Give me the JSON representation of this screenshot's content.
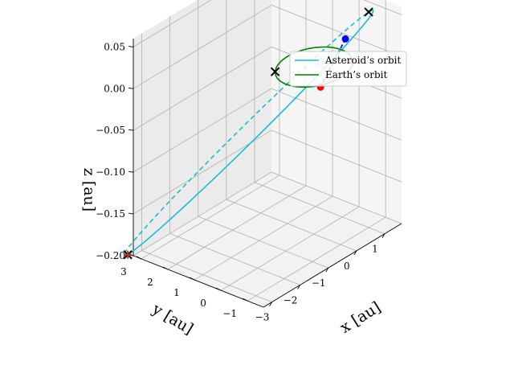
{
  "chart_data": {
    "type": "line",
    "projection": "3d",
    "title": "",
    "xlabel": "$x$ [au]",
    "ylabel": "$y$ [au]",
    "zlabel": "$z$ [au]",
    "xlabel_display": "x [au]",
    "ylabel_display": "y [au]",
    "zlabel_display": "z [au]",
    "xlim": [
      -3.3,
      1.6
    ],
    "ylim": [
      -1.6,
      3.3
    ],
    "zlim": [
      -0.2,
      0.06
    ],
    "x_ticks": [
      -3,
      -2,
      -1,
      0,
      1
    ],
    "y_ticks": [
      -1,
      0,
      1,
      2,
      3
    ],
    "z_ticks": [
      -0.2,
      -0.15,
      -0.1,
      -0.05,
      0.0,
      0.05
    ],
    "x_tick_labels": [
      "−3",
      "−2",
      "−1",
      "0",
      "1"
    ],
    "y_tick_labels": [
      "−1",
      "0",
      "1",
      "2",
      "3"
    ],
    "z_tick_labels": [
      "−0.20",
      "−0.15",
      "−0.10",
      "−0.05",
      "0.00",
      "0.05"
    ],
    "grid": true,
    "legend_position": "upper right",
    "series": [
      {
        "name": "Asteroid’s orbit",
        "color": "#17becf",
        "kind": "ellipse",
        "center": [
          -1.2,
          1.2,
          -0.07
        ],
        "perihelion": [
          1.0,
          -1.0,
          0.058
        ],
        "aphelion": [
          -3.4,
          3.4,
          -0.198
        ],
        "minor_axis_point": [
          -0.57,
          0.61,
          -0.05
        ],
        "back_half_dashed": true
      },
      {
        "name": "Earth’s orbit",
        "color": "#008000",
        "kind": "circle",
        "center": [
          0,
          0,
          0
        ],
        "radius": 1.0,
        "back_half_dashed": false
      }
    ],
    "markers": [
      {
        "kind": "cross",
        "color": "#000000",
        "position": [
          1.0,
          -1.0,
          0.058
        ]
      },
      {
        "kind": "cross",
        "color": "#000000",
        "position": [
          -3.4,
          3.4,
          -0.198
        ]
      },
      {
        "kind": "cross",
        "color": "#000000",
        "position": [
          -0.71,
          0.71,
          0.0
        ]
      },
      {
        "kind": "plus",
        "color": "#d62728",
        "position": [
          0.71,
          -0.71,
          0.0
        ]
      },
      {
        "kind": "plus",
        "color": "#d62728",
        "position": [
          -3.4,
          3.4,
          -0.198
        ]
      },
      {
        "kind": "dot",
        "color": "#0000ff",
        "position": [
          0.55,
          -0.6,
          0.03
        ]
      },
      {
        "kind": "dot",
        "color": "#ff0000",
        "position": [
          0.12,
          -0.12,
          -0.025
        ]
      }
    ],
    "line_of_nodes": {
      "color": "#0000ff",
      "style": "dashed",
      "from": [
        0.55,
        -0.6,
        0.03
      ],
      "to": [
        0.12,
        -0.12,
        -0.025
      ]
    }
  }
}
